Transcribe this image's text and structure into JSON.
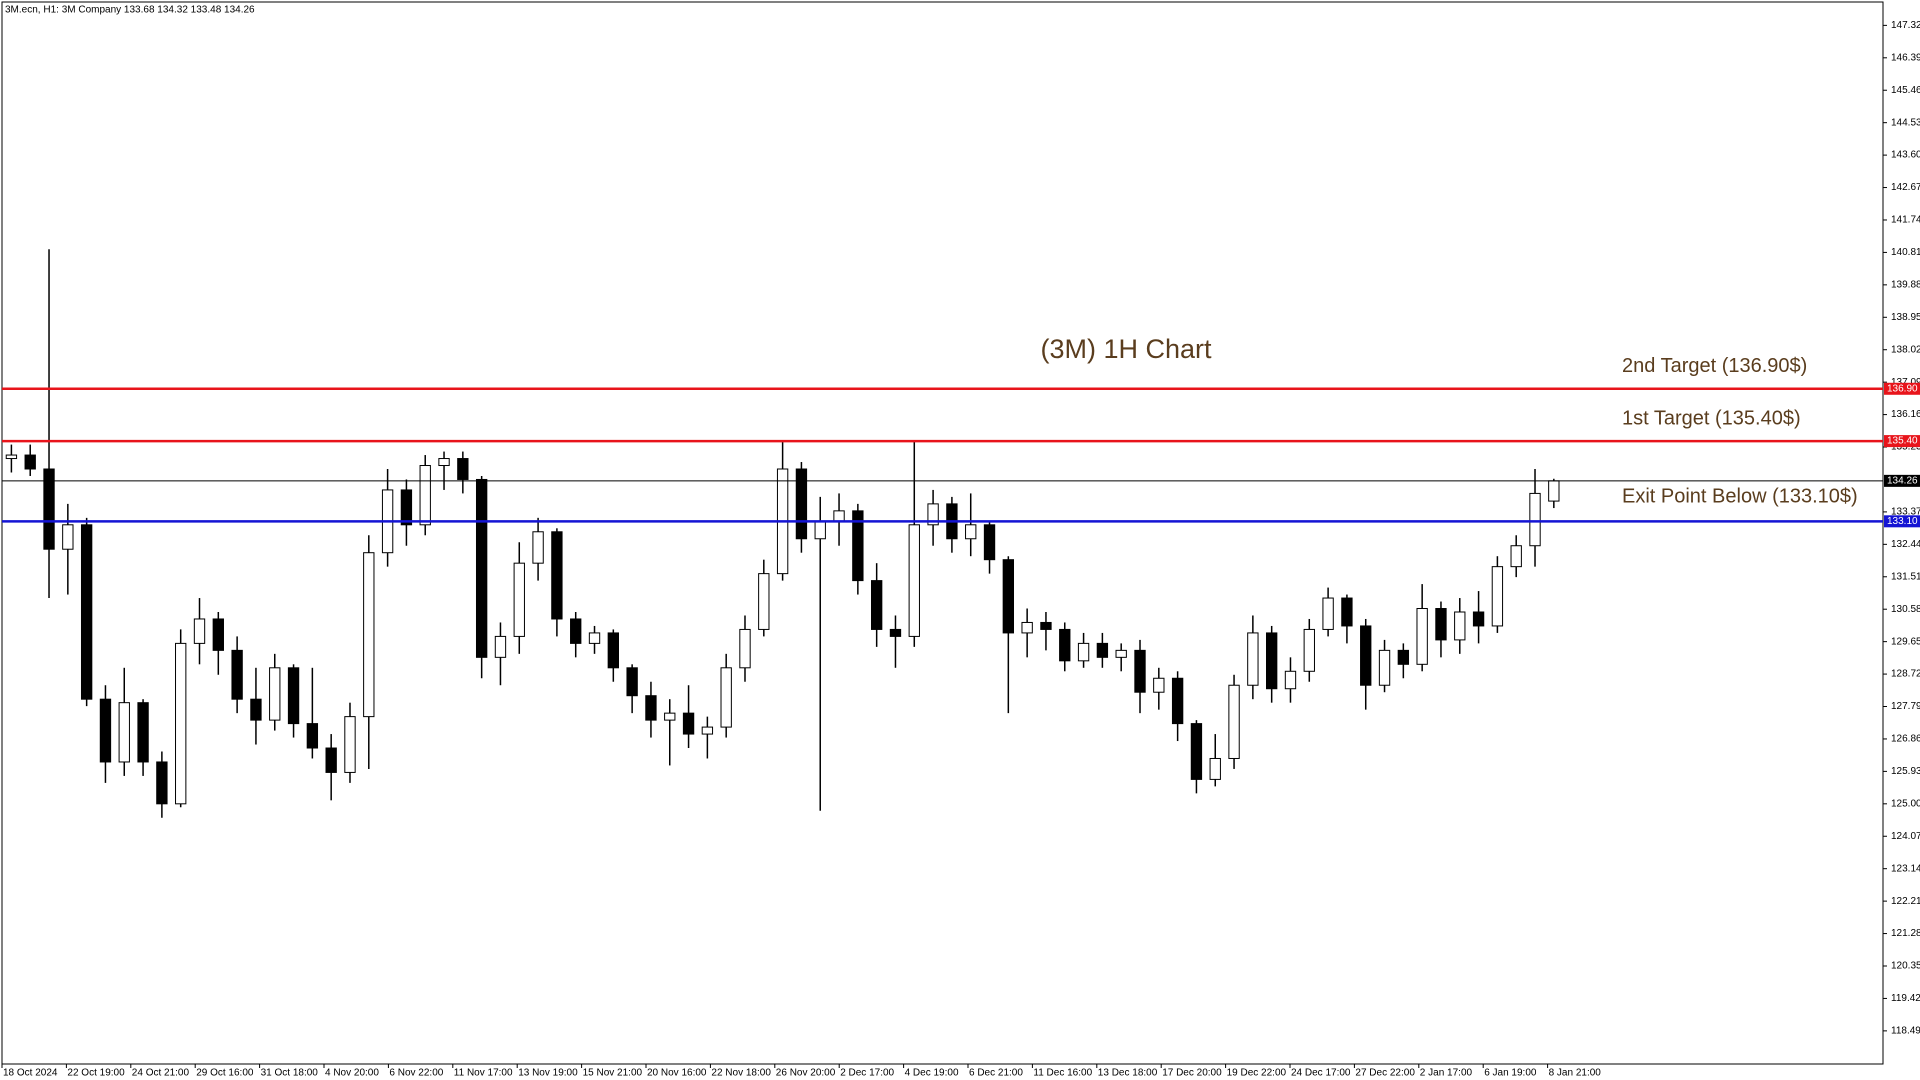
{
  "chart_data": {
    "type": "candlestick",
    "header": "3M.ecn, H1:  3M Company  133.68 134.32 133.48 134.26",
    "title": "(3M) 1H Chart",
    "ylim": [
      117.54,
      147.99
    ],
    "yticks": [
      147.32,
      146.39,
      145.46,
      144.53,
      {
        "value": 143.6,
        "label": "143.60"
      },
      142.67,
      141.74,
      140.81,
      139.88,
      138.95,
      138.02,
      137.09,
      136.16,
      135.23,
      133.37,
      132.44,
      131.51,
      130.58,
      129.65,
      128.72,
      127.79,
      126.86,
      125.93,
      {
        "value": 125,
        "label": "125.00"
      },
      124.07,
      123.14,
      122.21,
      121.28,
      120.35,
      119.42,
      118.49
    ],
    "xtick_labels": [
      "18 Oct 2024",
      "22 Oct 19:00",
      "24 Oct 21:00",
      "29 Oct 16:00",
      "31 Oct 18:00",
      "4 Nov 20:00",
      "6 Nov 22:00",
      "11 Nov 17:00",
      "13 Nov 19:00",
      "15 Nov 21:00",
      "20 Nov 16:00",
      "22 Nov 18:00",
      "26 Nov 20:00",
      "2 Dec 17:00",
      "4 Dec 19:00",
      "6 Dec 21:00",
      "11 Dec 16:00",
      "13 Dec 18:00",
      "17 Dec 20:00",
      "19 Dec 22:00",
      "24 Dec 17:00",
      "27 Dec 22:00",
      "2 Jan 17:00",
      "6 Jan 19:00",
      "8 Jan 21:00"
    ],
    "open": [
      134.9,
      135.0,
      134.6,
      132.3,
      133.0,
      128.0,
      126.2,
      127.9,
      126.2,
      125.0,
      129.6,
      130.3,
      129.4,
      128.0,
      127.4,
      128.9,
      127.3,
      126.6,
      125.9,
      127.5,
      132.2,
      134.0,
      133.0,
      134.7,
      134.9,
      134.3,
      129.2,
      129.8,
      131.9,
      132.8,
      130.3,
      129.6,
      129.9,
      128.9,
      128.1,
      127.4,
      127.6,
      127.0,
      127.2,
      128.9,
      130.0,
      131.6,
      134.6,
      132.6,
      133.1,
      133.4,
      131.4,
      130.0,
      129.8,
      133.0,
      133.6,
      132.6,
      133.0,
      132.0,
      129.9,
      130.2,
      130.0,
      129.1,
      129.6,
      129.2,
      129.4,
      128.2,
      128.6,
      127.3,
      125.7,
      126.3,
      128.4,
      129.9,
      128.3,
      128.8,
      130.0,
      130.9,
      130.1,
      128.4,
      129.4,
      129.0,
      130.6,
      129.7,
      130.5,
      130.1,
      131.8,
      132.4,
      133.68
    ],
    "high": [
      135.3,
      135.3,
      140.9,
      133.6,
      133.2,
      128.4,
      128.9,
      128.0,
      126.5,
      130.0,
      130.9,
      130.5,
      129.8,
      128.9,
      129.3,
      129.0,
      128.9,
      127.0,
      127.9,
      132.7,
      134.6,
      134.3,
      135.0,
      135.1,
      135.1,
      134.4,
      130.2,
      132.5,
      133.2,
      132.9,
      130.5,
      130.1,
      130.0,
      129.0,
      128.5,
      128.0,
      128.4,
      127.5,
      129.3,
      130.4,
      132.0,
      135.4,
      134.8,
      133.8,
      133.9,
      133.6,
      131.9,
      130.4,
      135.4,
      134.0,
      133.8,
      133.9,
      133.1,
      132.1,
      130.6,
      130.5,
      130.2,
      129.9,
      129.9,
      129.6,
      129.7,
      128.9,
      128.8,
      127.4,
      127.0,
      128.7,
      130.4,
      130.1,
      129.2,
      130.3,
      131.2,
      131.0,
      130.3,
      129.7,
      129.6,
      131.3,
      130.8,
      130.9,
      131.1,
      132.1,
      132.7,
      134.6,
      134.32
    ],
    "low": [
      134.5,
      134.4,
      130.9,
      131.0,
      127.8,
      125.6,
      125.8,
      125.8,
      124.6,
      124.9,
      129.0,
      128.7,
      127.6,
      126.7,
      127.1,
      126.9,
      126.3,
      125.1,
      125.6,
      126.0,
      131.8,
      132.4,
      132.7,
      134.0,
      133.9,
      128.6,
      128.4,
      129.3,
      131.4,
      129.8,
      129.2,
      129.3,
      128.5,
      127.6,
      126.9,
      126.1,
      126.6,
      126.3,
      126.9,
      128.5,
      129.8,
      131.4,
      132.2,
      124.8,
      132.4,
      131.0,
      129.5,
      128.9,
      129.5,
      132.4,
      132.2,
      132.1,
      131.6,
      127.6,
      129.2,
      129.4,
      128.8,
      128.9,
      128.9,
      128.8,
      127.6,
      127.7,
      126.8,
      125.3,
      125.5,
      126.0,
      128.0,
      127.9,
      127.9,
      128.5,
      129.8,
      129.6,
      127.7,
      128.2,
      128.6,
      128.8,
      129.2,
      129.3,
      129.6,
      129.9,
      131.5,
      131.8,
      133.48
    ],
    "close": [
      135.0,
      134.6,
      132.3,
      133.0,
      128.0,
      126.2,
      127.9,
      126.2,
      125.0,
      129.6,
      130.3,
      129.4,
      128.0,
      127.4,
      128.9,
      127.3,
      126.6,
      125.9,
      127.5,
      132.2,
      134.0,
      133.0,
      134.7,
      134.9,
      134.3,
      129.2,
      129.8,
      131.9,
      132.8,
      130.3,
      129.6,
      129.9,
      128.9,
      128.1,
      127.4,
      127.6,
      127.0,
      127.2,
      128.9,
      130.0,
      131.6,
      134.6,
      132.6,
      133.1,
      133.4,
      131.4,
      130.0,
      129.8,
      133.0,
      133.6,
      132.6,
      133.0,
      132.0,
      129.9,
      130.2,
      130.0,
      129.1,
      129.6,
      129.2,
      129.4,
      128.2,
      128.6,
      127.3,
      125.7,
      126.3,
      128.4,
      129.9,
      128.3,
      128.8,
      130.0,
      130.9,
      130.1,
      128.4,
      129.4,
      129.0,
      130.6,
      129.7,
      130.5,
      130.1,
      131.8,
      132.4,
      133.9,
      134.26
    ],
    "levels": [
      {
        "value": 136.9,
        "label": "136.90",
        "color": "#e8141b",
        "note": "2nd Target (136.90$)"
      },
      {
        "value": 135.4,
        "label": "135.40",
        "color": "#e8141b",
        "note": "1st Target (135.40$)"
      },
      {
        "value": 134.26,
        "label": "134.26",
        "color": "#000000"
      },
      {
        "value": 133.1,
        "label": "133.10",
        "color": "#1414d4",
        "note": "Exit Point Below (133.10$)"
      }
    ]
  }
}
